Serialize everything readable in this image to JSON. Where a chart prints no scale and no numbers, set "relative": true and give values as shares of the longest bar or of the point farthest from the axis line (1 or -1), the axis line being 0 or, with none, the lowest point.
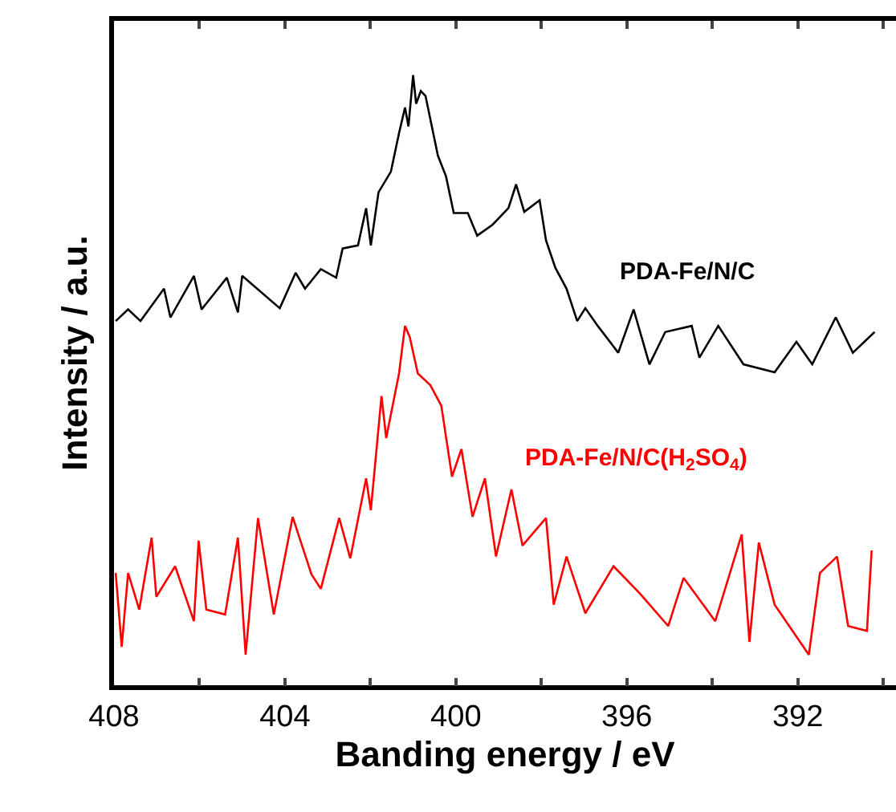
{
  "chart_data": {
    "type": "line",
    "relative": true,
    "xlabel": "Banding energy / eV",
    "ylabel": "Intensity / a.u.",
    "xlim": [
      408,
      389.7
    ],
    "xticks": [
      408,
      {
        "value": 406,
        "label": null
      },
      404,
      {
        "value": 402,
        "label": null
      },
      400,
      {
        "value": 398,
        "label": null
      },
      396,
      {
        "value": 394,
        "label": null
      },
      392,
      {
        "value": 390,
        "label": null
      }
    ],
    "tick_labels": "x",
    "legend": false,
    "marker": "none",
    "line_style": "solid",
    "series": [
      {
        "name": "PDA-Fe/N/C",
        "color": "#000000",
        "x": [
          407.96,
          407.67,
          407.38,
          406.83,
          406.68,
          406.13,
          405.95,
          405.36,
          405.1,
          405.0,
          404.12,
          403.75,
          403.53,
          403.16,
          402.8,
          402.65,
          402.29,
          402.1,
          401.99,
          401.81,
          401.52,
          401.33,
          401.19,
          401.11,
          401.0,
          400.93,
          400.82,
          400.71,
          400.42,
          400.23,
          400.05,
          399.72,
          399.5,
          399.14,
          398.77,
          398.59,
          398.4,
          398.04,
          397.89,
          397.67,
          397.41,
          397.16,
          396.97,
          396.68,
          396.2,
          395.84,
          395.47,
          395.1,
          394.48,
          394.3,
          393.86,
          393.27,
          392.54,
          392.03,
          391.66,
          391.11,
          390.71,
          390.2
        ],
        "values": [
          0.597,
          0.616,
          0.597,
          0.65,
          0.603,
          0.671,
          0.616,
          0.668,
          0.611,
          0.671,
          0.618,
          0.676,
          0.65,
          0.682,
          0.668,
          0.716,
          0.721,
          0.782,
          0.721,
          0.808,
          0.842,
          0.905,
          0.947,
          0.916,
          1.0,
          0.953,
          0.974,
          0.966,
          0.868,
          0.834,
          0.774,
          0.774,
          0.737,
          0.755,
          0.782,
          0.821,
          0.776,
          0.795,
          0.729,
          0.684,
          0.65,
          0.597,
          0.618,
          0.589,
          0.545,
          0.616,
          0.526,
          0.579,
          0.589,
          0.537,
          0.589,
          0.526,
          0.513,
          0.563,
          0.526,
          0.603,
          0.545,
          0.579
        ]
      },
      {
        "name": "PDA-Fe/N/C(H$_{2}$SO$_{4}$)",
        "color": "#ff0000",
        "x": [
          407.96,
          407.82,
          407.67,
          407.41,
          407.12,
          407.01,
          406.57,
          406.13,
          406.02,
          405.84,
          405.4,
          405.1,
          404.92,
          404.63,
          404.26,
          403.82,
          403.38,
          403.16,
          402.73,
          402.47,
          402.1,
          401.99,
          401.74,
          401.63,
          401.33,
          401.19,
          401.08,
          400.89,
          400.6,
          400.34,
          400.09,
          399.87,
          399.61,
          399.32,
          399.06,
          398.7,
          398.44,
          397.89,
          397.71,
          397.41,
          396.97,
          396.31,
          395.69,
          395.03,
          394.67,
          393.93,
          393.31,
          393.13,
          392.91,
          392.54,
          391.74,
          391.48,
          391.08,
          390.82,
          390.38,
          390.27
        ],
        "values": [
          0.184,
          0.063,
          0.184,
          0.124,
          0.242,
          0.145,
          0.195,
          0.105,
          0.237,
          0.124,
          0.116,
          0.242,
          0.05,
          0.274,
          0.116,
          0.276,
          0.182,
          0.158,
          0.274,
          0.208,
          0.339,
          0.287,
          0.474,
          0.405,
          0.511,
          0.589,
          0.571,
          0.511,
          0.492,
          0.458,
          0.342,
          0.387,
          0.276,
          0.339,
          0.211,
          0.321,
          0.229,
          0.274,
          0.132,
          0.211,
          0.118,
          0.195,
          0.15,
          0.097,
          0.176,
          0.105,
          0.247,
          0.071,
          0.234,
          0.132,
          0.05,
          0.184,
          0.211,
          0.097,
          0.089,
          0.221
        ]
      }
    ]
  }
}
